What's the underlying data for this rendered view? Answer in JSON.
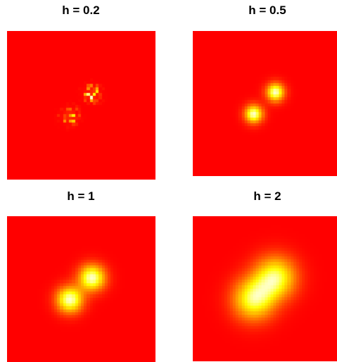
{
  "colors": {
    "background": "#ff0000",
    "low": "#ff0000",
    "mid": "#ff8000",
    "high": "#ffff00",
    "peak": "#ffffcc"
  },
  "chart_data": [
    {
      "type": "heatmap",
      "title": "h = 0.2",
      "bandwidth": 0.2,
      "colormap": "heat",
      "peaks": [
        {
          "x": 0.12,
          "y": 0.12
        },
        {
          "x": -0.12,
          "y": -0.12
        }
      ]
    },
    {
      "type": "heatmap",
      "title": "h = 0.5",
      "bandwidth": 0.5,
      "colormap": "heat",
      "peaks": [
        {
          "x": 0.12,
          "y": 0.12
        },
        {
          "x": -0.12,
          "y": -0.12
        }
      ]
    },
    {
      "type": "heatmap",
      "title": "h = 1",
      "bandwidth": 1,
      "colormap": "heat",
      "peaks": [
        {
          "x": 0.12,
          "y": 0.12
        },
        {
          "x": -0.12,
          "y": -0.12
        }
      ]
    },
    {
      "type": "heatmap",
      "title": "h = 2",
      "bandwidth": 2,
      "colormap": "heat",
      "peaks": [
        {
          "x": 0.12,
          "y": 0.12
        },
        {
          "x": -0.12,
          "y": -0.12
        }
      ]
    }
  ]
}
